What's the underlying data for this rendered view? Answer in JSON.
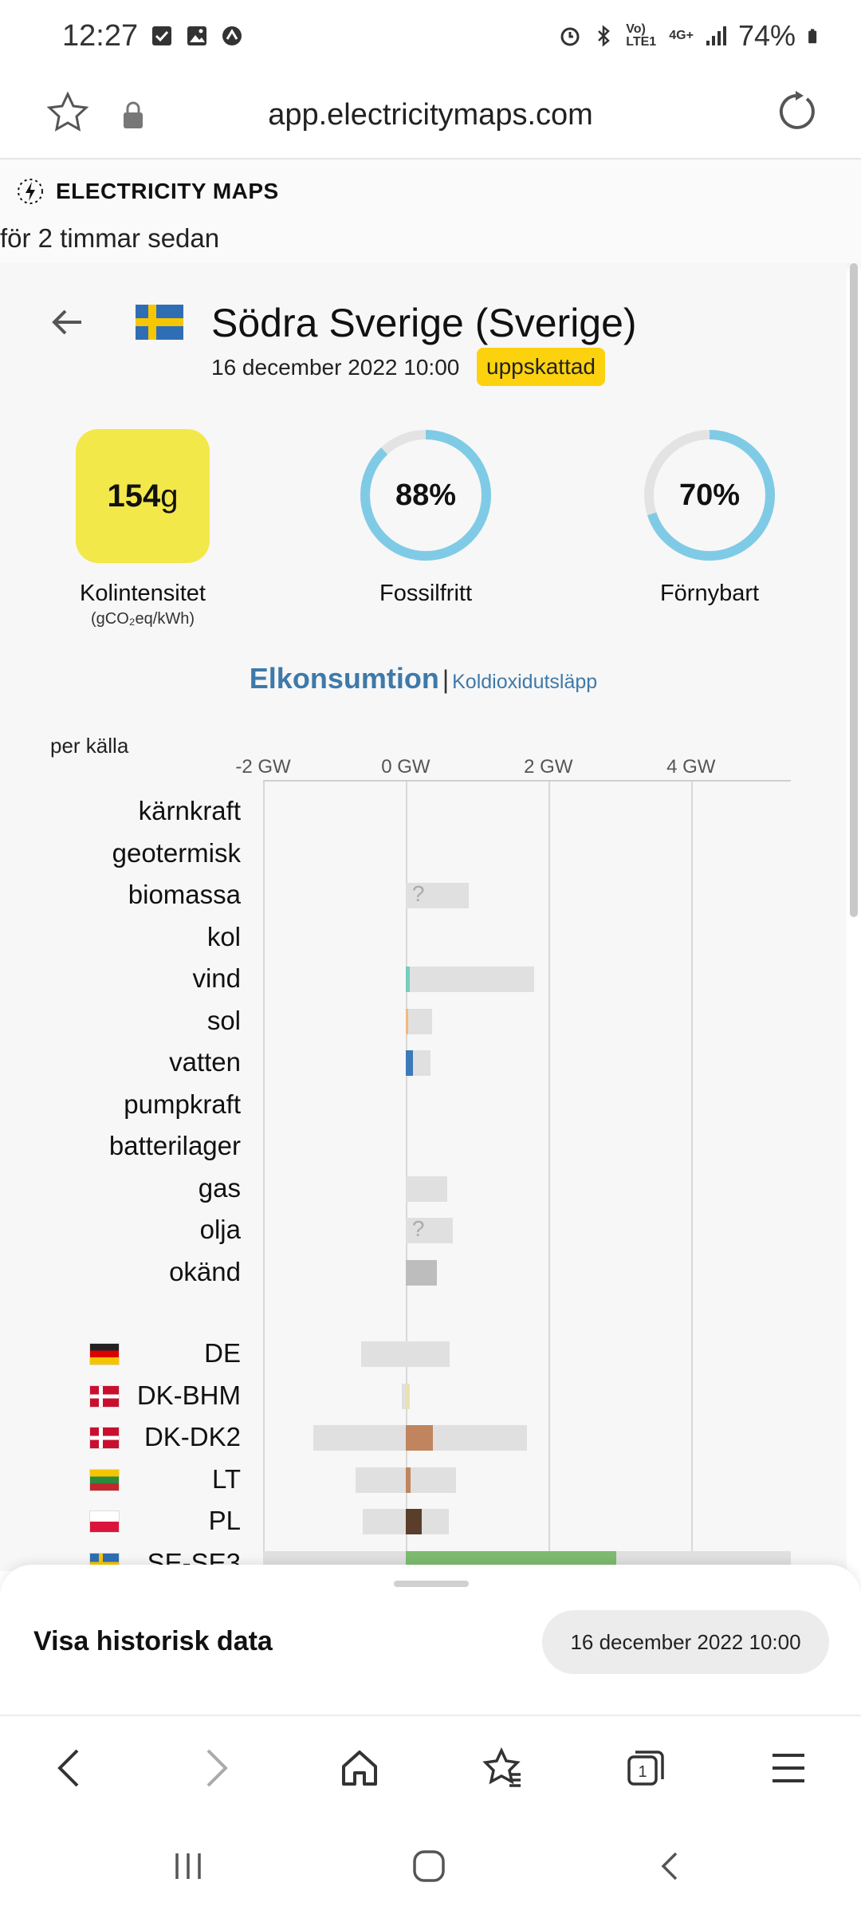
{
  "status_bar": {
    "time": "12:27",
    "signal_label": "Vo) LTE1",
    "network": "4G+",
    "battery": "74%"
  },
  "browser": {
    "url": "app.electricitymaps.com"
  },
  "app_header": {
    "brand": "ELECTRICITY MAPS",
    "relative_time": "för 2 timmar sedan"
  },
  "zone": {
    "name": "Södra Sverige (Sverige)",
    "datetime": "16 december 2022 10:00",
    "badge": "uppskattad"
  },
  "metrics": {
    "carbon_intensity_value": "154",
    "carbon_intensity_unit": "g",
    "carbon_intensity_label": "Kolintensitet",
    "carbon_intensity_sublabel": "(gCO₂eq/kWh)",
    "fossil_free_value": "88%",
    "fossil_free_fraction": 0.88,
    "fossil_free_label": "Fossilfritt",
    "renewable_value": "70%",
    "renewable_fraction": 0.7,
    "renewable_label": "Förnybart",
    "ring_color": "#7fcbe6",
    "ring_track_color": "#e3e3e3"
  },
  "tabs": {
    "active": "Elkonsumtion",
    "separator": "|",
    "inactive": "Koldioxidutsläpp"
  },
  "chart_data": {
    "type": "bar",
    "title": "per källa",
    "xlim": [
      -2,
      5.4
    ],
    "x_ticks": [
      "-2 GW",
      "0 GW",
      "2 GW",
      "4 GW"
    ],
    "x_tick_values": [
      -2,
      0,
      2,
      4
    ],
    "unit": "GW",
    "sources": [
      {
        "label": "kärnkraft",
        "capacity": null,
        "value": null,
        "color": null,
        "unknown": false
      },
      {
        "label": "geotermisk",
        "capacity": null,
        "value": null,
        "color": null,
        "unknown": false
      },
      {
        "label": "biomassa",
        "capacity": [
          0,
          0.88
        ],
        "value": null,
        "color": null,
        "unknown": true
      },
      {
        "label": "kol",
        "capacity": null,
        "value": null,
        "color": null,
        "unknown": false
      },
      {
        "label": "vind",
        "capacity": [
          0,
          1.8
        ],
        "value": 0.06,
        "color": "#74cdb9",
        "unknown": false
      },
      {
        "label": "sol",
        "capacity": [
          0,
          0.37
        ],
        "value": 0.02,
        "color": "#f2b77f",
        "unknown": false
      },
      {
        "label": "vatten",
        "capacity": [
          0,
          0.35
        ],
        "value": 0.1,
        "color": "#3c7ab9",
        "unknown": false
      },
      {
        "label": "pumpkraft",
        "capacity": null,
        "value": null,
        "color": null,
        "unknown": false
      },
      {
        "label": "batterilager",
        "capacity": null,
        "value": null,
        "color": null,
        "unknown": false
      },
      {
        "label": "gas",
        "capacity": [
          0,
          0.58
        ],
        "value": null,
        "color": null,
        "unknown": false
      },
      {
        "label": "olja",
        "capacity": [
          0,
          0.66
        ],
        "value": null,
        "color": null,
        "unknown": true
      },
      {
        "label": "okänd",
        "capacity": null,
        "value": 0.44,
        "color": "#bdbdbd",
        "unknown": false
      }
    ],
    "exchanges": [
      {
        "label": "DE",
        "flag": "de",
        "capacity": [
          -0.62,
          0.62
        ],
        "value": null,
        "color": null
      },
      {
        "label": "DK-BHM",
        "flag": "dk",
        "capacity": [
          -0.05,
          0.05
        ],
        "value": 0.06,
        "color": "#e9e1b5"
      },
      {
        "label": "DK-DK2",
        "flag": "dk",
        "capacity": [
          -1.3,
          1.7
        ],
        "value": 0.38,
        "color": "#c0855e"
      },
      {
        "label": "LT",
        "flag": "lt",
        "capacity": [
          -0.7,
          0.7
        ],
        "value": 0.07,
        "color": "#c0855e"
      },
      {
        "label": "PL",
        "flag": "pl",
        "capacity": [
          -0.6,
          0.6
        ],
        "value": 0.22,
        "color": "#5a3e2b"
      },
      {
        "label": "SE-SE3",
        "flag": "se",
        "capacity": [
          -2,
          5.4
        ],
        "value": 2.95,
        "color": "#7dbb6f"
      }
    ]
  },
  "history_sheet": {
    "title": "Visa historisk data",
    "date": "16 december 2022 10:00"
  },
  "browser_nav": {
    "icons": [
      "back-icon",
      "forward-icon",
      "home-icon",
      "bookmarks-icon",
      "tabs-icon",
      "menu-icon"
    ],
    "tab_count": "1"
  },
  "system_nav": {
    "icons": [
      "recents-icon",
      "home-icon",
      "back-icon"
    ]
  }
}
